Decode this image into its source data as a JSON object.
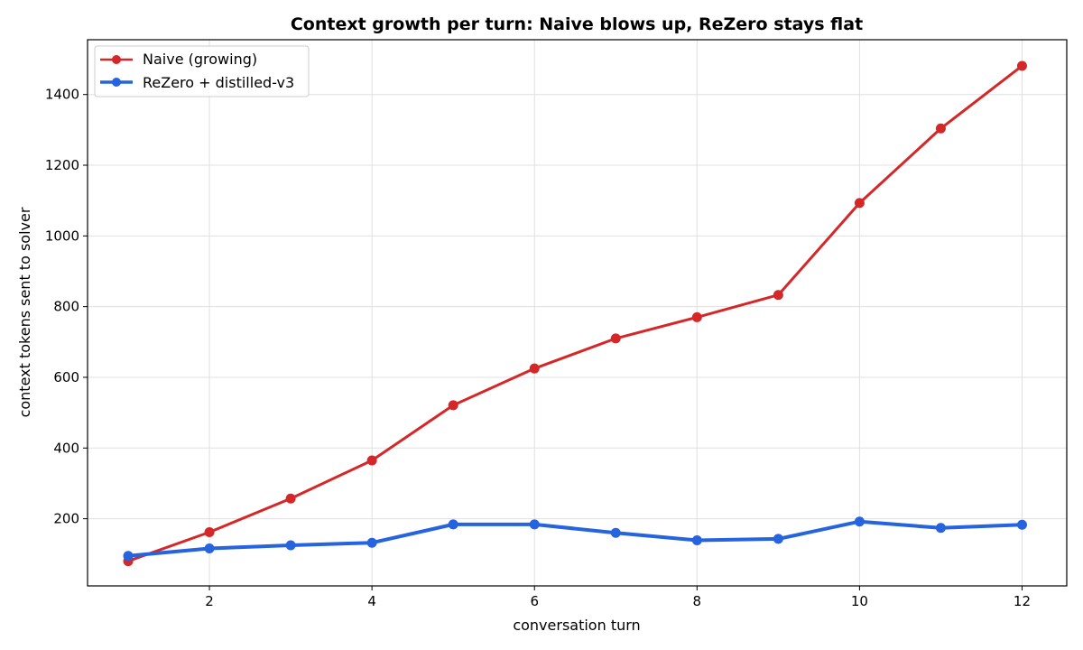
{
  "chart_data": {
    "type": "line",
    "title": "Context growth per turn: Naive blows up, ReZero stays flat",
    "xlabel": "conversation turn",
    "ylabel": "context tokens sent to solver",
    "x": [
      1,
      2,
      3,
      4,
      5,
      6,
      7,
      8,
      9,
      10,
      11,
      12
    ],
    "xlim": [
      0.5,
      12.55
    ],
    "ylim": [
      10,
      1555
    ],
    "xticks": [
      2,
      4,
      6,
      8,
      10,
      12
    ],
    "yticks": [
      200,
      400,
      600,
      800,
      1000,
      1200,
      1400
    ],
    "grid": true,
    "legend_position": "top-left",
    "series": [
      {
        "name": "Naive (growing)",
        "color": "#d62728",
        "values": [
          80,
          162,
          257,
          365,
          521,
          625,
          710,
          770,
          833,
          1093,
          1304,
          1481
        ]
      },
      {
        "name": "ReZero + distilled-v3",
        "color": "#2563df",
        "values": [
          95,
          116,
          125,
          132,
          184,
          184,
          160,
          139,
          143,
          192,
          174,
          183
        ]
      }
    ]
  }
}
